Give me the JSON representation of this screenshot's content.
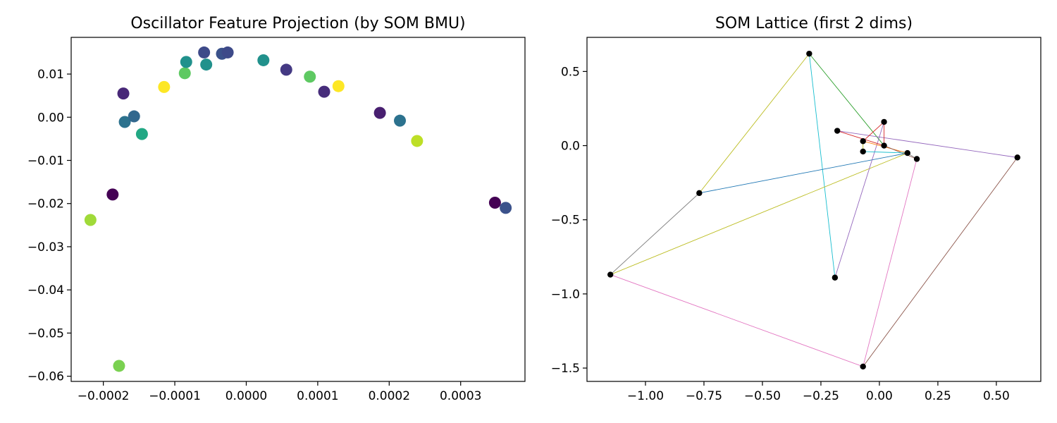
{
  "chart_data": [
    {
      "type": "scatter",
      "title": "Oscillator Feature Projection (by SOM BMU)",
      "xlabel": "",
      "ylabel": "",
      "xlim": [
        -0.000245,
        0.00039
      ],
      "ylim": [
        -0.0612,
        0.0185
      ],
      "grid": false,
      "xticks": [
        -0.0002,
        -0.0001,
        0.0,
        0.0001,
        0.0002,
        0.0003
      ],
      "xtick_labels": [
        "−0.0002",
        "−0.0001",
        "0.0000",
        "0.0001",
        "0.0002",
        "0.0003"
      ],
      "yticks": [
        0.01,
        0.0,
        -0.01,
        -0.02,
        -0.03,
        -0.04,
        -0.05,
        -0.06
      ],
      "ytick_labels": [
        "0.01",
        "0.00",
        "−0.01",
        "−0.02",
        "−0.03",
        "−0.04",
        "−0.05",
        "−0.06"
      ],
      "points": [
        {
          "x": -0.000218,
          "y": -0.0238,
          "color": "#a0da39"
        },
        {
          "x": -0.000187,
          "y": -0.0179,
          "color": "#440154"
        },
        {
          "x": -0.000178,
          "y": -0.0576,
          "color": "#7ad151"
        },
        {
          "x": -0.000172,
          "y": 0.0055,
          "color": "#482878"
        },
        {
          "x": -0.00017,
          "y": -0.0011,
          "color": "#2c728e"
        },
        {
          "x": -0.000157,
          "y": 0.0002,
          "color": "#31688e"
        },
        {
          "x": -0.000146,
          "y": -0.0039,
          "color": "#22a884"
        },
        {
          "x": -0.000115,
          "y": 0.007,
          "color": "#fde725"
        },
        {
          "x": -8.6e-05,
          "y": 0.0102,
          "color": "#5ec962"
        },
        {
          "x": -8.4e-05,
          "y": 0.0128,
          "color": "#21918c"
        },
        {
          "x": -5.9e-05,
          "y": 0.015,
          "color": "#3e4a89"
        },
        {
          "x": -5.6e-05,
          "y": 0.0122,
          "color": "#21918c"
        },
        {
          "x": -3.4e-05,
          "y": 0.0147,
          "color": "#3b528b"
        },
        {
          "x": -2.6e-05,
          "y": 0.015,
          "color": "#3e4a89"
        },
        {
          "x": 2.4e-05,
          "y": 0.0132,
          "color": "#21918c"
        },
        {
          "x": 5.6e-05,
          "y": 0.011,
          "color": "#443983"
        },
        {
          "x": 8.9e-05,
          "y": 0.0094,
          "color": "#5ec962"
        },
        {
          "x": 0.000109,
          "y": 0.0059,
          "color": "#472d7b"
        },
        {
          "x": 0.000129,
          "y": 0.0072,
          "color": "#fde725"
        },
        {
          "x": 0.000187,
          "y": 0.001,
          "color": "#481f70"
        },
        {
          "x": 0.000215,
          "y": -0.0008,
          "color": "#2c728e"
        },
        {
          "x": 0.000239,
          "y": -0.0055,
          "color": "#bddf26"
        },
        {
          "x": 0.000348,
          "y": -0.0198,
          "color": "#440154"
        },
        {
          "x": 0.000363,
          "y": -0.021,
          "color": "#3b528b"
        }
      ]
    },
    {
      "type": "network",
      "title": "SOM Lattice (first 2 dims)",
      "xlabel": "",
      "ylabel": "",
      "xlim": [
        -1.25,
        0.69
      ],
      "ylim": [
        -1.59,
        0.73
      ],
      "grid": false,
      "xticks": [
        -1.0,
        -0.75,
        -0.5,
        -0.25,
        0.0,
        0.25,
        0.5
      ],
      "xtick_labels": [
        "−1.00",
        "−0.75",
        "−0.50",
        "−0.25",
        "0.00",
        "0.25",
        "0.50"
      ],
      "yticks": [
        0.5,
        0.0,
        -0.5,
        -1.0,
        -1.5
      ],
      "ytick_labels": [
        "0.5",
        "0.0",
        "−0.5",
        "−1.0",
        "−1.5"
      ],
      "node_color": "#000000",
      "nodes": [
        {
          "x": -0.3,
          "y": 0.62
        },
        {
          "x": -0.18,
          "y": 0.1
        },
        {
          "x": 0.02,
          "y": 0.16
        },
        {
          "x": -0.07,
          "y": 0.03
        },
        {
          "x": 0.02,
          "y": 0.0
        },
        {
          "x": -0.07,
          "y": -0.04
        },
        {
          "x": 0.12,
          "y": -0.05
        },
        {
          "x": 0.16,
          "y": -0.09
        },
        {
          "x": 0.59,
          "y": -0.08
        },
        {
          "x": -0.77,
          "y": -0.32
        },
        {
          "x": -1.15,
          "y": -0.87
        },
        {
          "x": -0.19,
          "y": -0.89
        },
        {
          "x": -0.07,
          "y": -1.49
        }
      ],
      "edges": [
        {
          "from": 0,
          "to": 9,
          "color": "#bcbd22"
        },
        {
          "from": 0,
          "to": 11,
          "color": "#17becf"
        },
        {
          "from": 0,
          "to": 4,
          "color": "#2ca02c"
        },
        {
          "from": 9,
          "to": 10,
          "color": "#7f7f7f"
        },
        {
          "from": 9,
          "to": 6,
          "color": "#1f77b4"
        },
        {
          "from": 10,
          "to": 12,
          "color": "#e377c2"
        },
        {
          "from": 10,
          "to": 6,
          "color": "#bcbd22"
        },
        {
          "from": 12,
          "to": 8,
          "color": "#8c564b"
        },
        {
          "from": 12,
          "to": 7,
          "color": "#e377c2"
        },
        {
          "from": 11,
          "to": 2,
          "color": "#9467bd"
        },
        {
          "from": 1,
          "to": 8,
          "color": "#9467bd"
        },
        {
          "from": 1,
          "to": 4,
          "color": "#d62728"
        },
        {
          "from": 3,
          "to": 2,
          "color": "#d62728"
        },
        {
          "from": 3,
          "to": 6,
          "color": "#ff7f0e"
        },
        {
          "from": 3,
          "to": 5,
          "color": "#bcbd22"
        },
        {
          "from": 4,
          "to": 2,
          "color": "#d62728"
        },
        {
          "from": 4,
          "to": 7,
          "color": "#8c564b"
        },
        {
          "from": 5,
          "to": 6,
          "color": "#17becf"
        },
        {
          "from": 6,
          "to": 7,
          "color": "#7f7f7f"
        }
      ]
    }
  ]
}
